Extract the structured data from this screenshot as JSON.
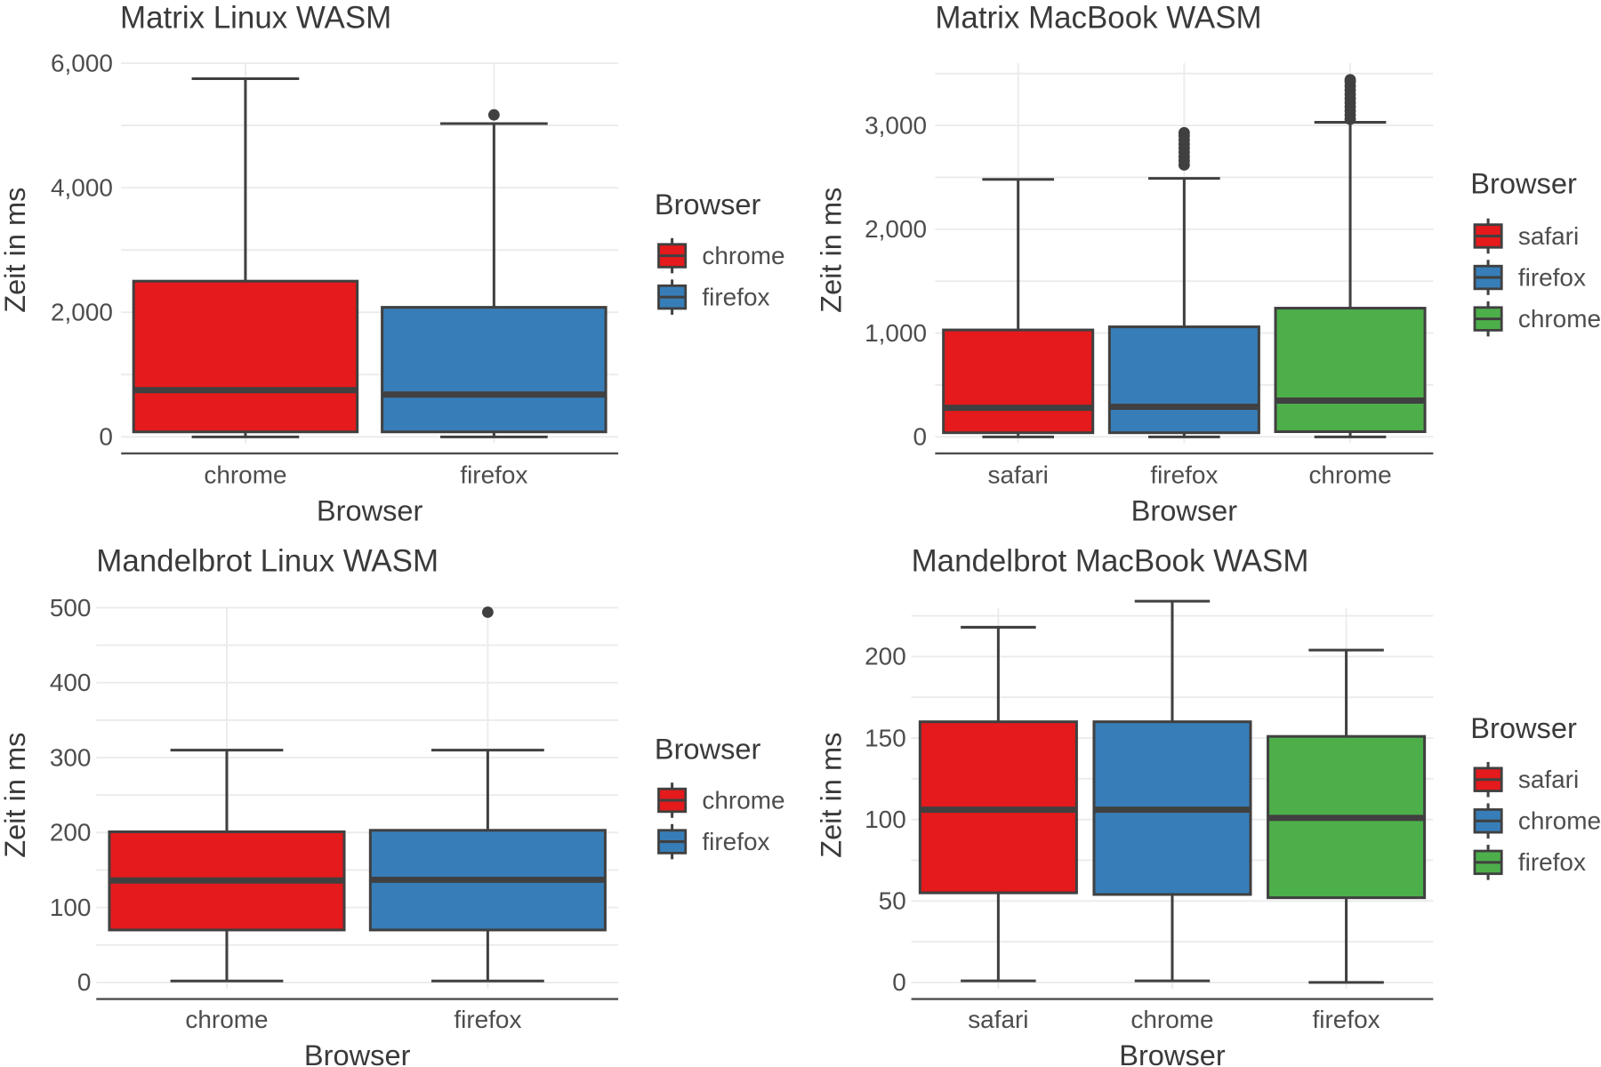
{
  "colors": {
    "red": "#E41A1C",
    "blue": "#377EB8",
    "green": "#4DAF4A",
    "line": "#404040"
  },
  "chart_data": [
    {
      "type": "boxplot",
      "title": "Matrix Linux WASM",
      "xlabel": "Browser",
      "ylabel": "Zeit in ms",
      "ylim": [
        0,
        6000
      ],
      "yticks": [
        0,
        2000,
        4000,
        6000
      ],
      "ytick_labels": [
        "0",
        "2,000",
        "4,000",
        "6,000"
      ],
      "grid": true,
      "legend_title": "Browser",
      "legend_position": "right",
      "categories": [
        "chrome",
        "firefox"
      ],
      "series": [
        {
          "name": "chrome",
          "color": "#E41A1C",
          "whisker_low": 0,
          "q1": 80,
          "median": 750,
          "q3": 2500,
          "whisker_high": 5750,
          "outliers": []
        },
        {
          "name": "firefox",
          "color": "#377EB8",
          "whisker_low": 0,
          "q1": 80,
          "median": 680,
          "q3": 2080,
          "whisker_high": 5030,
          "outliers": [
            5170
          ]
        }
      ]
    },
    {
      "type": "boxplot",
      "title": "Matrix MacBook WASM",
      "xlabel": "Browser",
      "ylabel": "Zeit in ms",
      "ylim": [
        0,
        3600
      ],
      "yticks": [
        0,
        1000,
        2000,
        3000
      ],
      "ytick_labels": [
        "0",
        "1,000",
        "2,000",
        "3,000"
      ],
      "grid": true,
      "legend_title": "Browser",
      "legend_position": "right",
      "categories": [
        "safari",
        "firefox",
        "chrome"
      ],
      "series": [
        {
          "name": "safari",
          "color": "#E41A1C",
          "whisker_low": 0,
          "q1": 40,
          "median": 280,
          "q3": 1030,
          "whisker_high": 2480,
          "outliers": []
        },
        {
          "name": "firefox",
          "color": "#377EB8",
          "whisker_low": 0,
          "q1": 40,
          "median": 290,
          "q3": 1060,
          "whisker_high": 2490,
          "outliers": [
            2620,
            2660,
            2700,
            2740,
            2780,
            2820,
            2860,
            2900,
            2930
          ]
        },
        {
          "name": "chrome",
          "color": "#4DAF4A",
          "whisker_low": 0,
          "q1": 50,
          "median": 350,
          "q3": 1240,
          "whisker_high": 3030,
          "outliers": [
            3060,
            3100,
            3140,
            3180,
            3220,
            3260,
            3300,
            3340,
            3380,
            3420,
            3440
          ]
        }
      ]
    },
    {
      "type": "boxplot",
      "title": "Mandelbrot Linux WASM",
      "xlabel": "Browser",
      "ylabel": "Zeit in ms",
      "ylim": [
        0,
        500
      ],
      "yticks": [
        0,
        100,
        200,
        300,
        400,
        500
      ],
      "ytick_labels": [
        "0",
        "100",
        "200",
        "300",
        "400",
        "500"
      ],
      "grid": true,
      "legend_title": "Browser",
      "legend_position": "right",
      "categories": [
        "chrome",
        "firefox"
      ],
      "series": [
        {
          "name": "chrome",
          "color": "#E41A1C",
          "whisker_low": 2,
          "q1": 70,
          "median": 136,
          "q3": 201,
          "whisker_high": 310,
          "outliers": []
        },
        {
          "name": "firefox",
          "color": "#377EB8",
          "whisker_low": 2,
          "q1": 70,
          "median": 137,
          "q3": 203,
          "whisker_high": 310,
          "outliers": [
            494
          ]
        }
      ]
    },
    {
      "type": "boxplot",
      "title": "Mandelbrot MacBook WASM",
      "xlabel": "Browser",
      "ylabel": "Zeit in ms",
      "ylim": [
        0,
        230
      ],
      "yticks": [
        0,
        50,
        100,
        150,
        200
      ],
      "ytick_labels": [
        "0",
        "50",
        "100",
        "150",
        "200"
      ],
      "grid": true,
      "legend_title": "Browser",
      "legend_position": "right",
      "categories": [
        "safari",
        "chrome",
        "firefox"
      ],
      "series": [
        {
          "name": "safari",
          "color": "#E41A1C",
          "whisker_low": 1,
          "q1": 55,
          "median": 106,
          "q3": 160,
          "whisker_high": 218,
          "outliers": []
        },
        {
          "name": "chrome",
          "color": "#377EB8",
          "whisker_low": 1,
          "q1": 54,
          "median": 106,
          "q3": 160,
          "whisker_high": 234,
          "outliers": []
        },
        {
          "name": "firefox",
          "color": "#4DAF4A",
          "whisker_low": 0,
          "q1": 52,
          "median": 101,
          "q3": 151,
          "whisker_high": 204,
          "outliers": []
        }
      ]
    }
  ]
}
